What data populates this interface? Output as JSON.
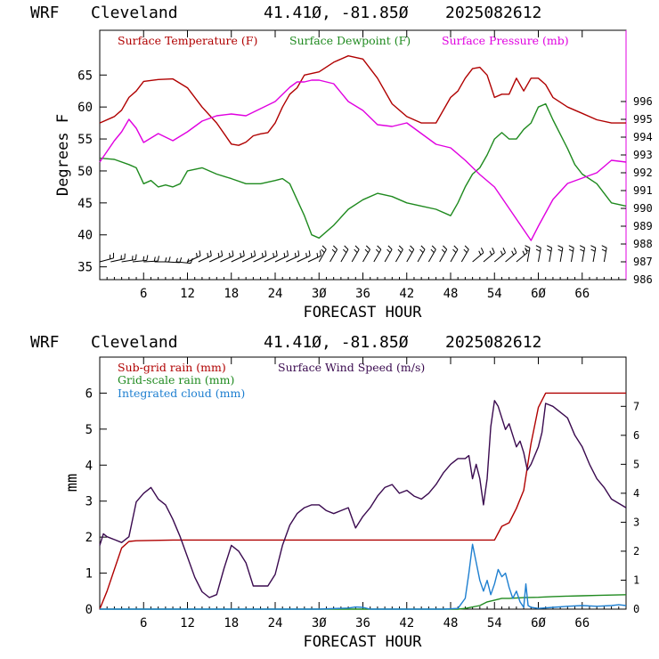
{
  "header": {
    "model": "WRF",
    "location": "Cleveland",
    "coords": "41.41Ø, -81.85Ø",
    "run": "2025082612"
  },
  "chart_data": [
    {
      "type": "line",
      "xlabel": "FORECAST HOUR",
      "ylabel": "Degrees F",
      "xlim": [
        0,
        72
      ],
      "ylim": [
        33,
        72
      ],
      "y2lim": [
        986,
        1000
      ],
      "x_ticks": [
        6,
        12,
        18,
        24,
        30,
        36,
        42,
        48,
        54,
        60,
        66
      ],
      "x_tick_labels": [
        "6",
        "12",
        "18",
        "24",
        "3Ø",
        "36",
        "42",
        "48",
        "54",
        "6Ø",
        "66"
      ],
      "y_ticks": [
        35,
        40,
        45,
        50,
        55,
        60,
        65
      ],
      "y2_ticks": [
        986,
        987,
        988,
        989,
        990,
        991,
        992,
        993,
        994,
        995,
        996
      ],
      "colors": {
        "temperature": "#b00000",
        "dewpoint": "#1f8a1f",
        "pressure": "#e000e0"
      },
      "series": [
        {
          "name": "Surface Temperature (F)",
          "axis": "left",
          "x": [
            0,
            2,
            3,
            4,
            5,
            6,
            8,
            10,
            12,
            14,
            16,
            18,
            19,
            20,
            21,
            22,
            23,
            24,
            25,
            26,
            27,
            28,
            30,
            32,
            34,
            36,
            38,
            40,
            42,
            44,
            46,
            48,
            49,
            50,
            51,
            52,
            53,
            54,
            55,
            56,
            57,
            58,
            59,
            60,
            61,
            62,
            64,
            66,
            68,
            70,
            72
          ],
          "y": [
            57.5,
            58.5,
            59.5,
            61.5,
            62.5,
            64,
            64.3,
            64.4,
            63,
            60,
            57.5,
            54.2,
            54,
            54.5,
            55.5,
            55.8,
            56,
            57.5,
            60,
            62,
            63,
            65,
            65.5,
            67,
            68,
            67.5,
            64.5,
            60.5,
            58.5,
            57.5,
            57.5,
            61.5,
            62.5,
            64.5,
            66,
            66.2,
            65,
            61.5,
            62,
            62,
            64.5,
            62.5,
            64.5,
            64.5,
            63.5,
            61.5,
            60,
            59,
            58,
            57.5,
            57.5
          ]
        },
        {
          "name": "Surface Dewpoint (F)",
          "axis": "left",
          "x": [
            0,
            2,
            4,
            5,
            6,
            7,
            8,
            9,
            10,
            11,
            12,
            14,
            16,
            18,
            20,
            22,
            24,
            25,
            26,
            27,
            28,
            29,
            30,
            32,
            34,
            36,
            38,
            40,
            42,
            44,
            46,
            48,
            49,
            50,
            51,
            52,
            53,
            54,
            55,
            56,
            57,
            58,
            59,
            60,
            61,
            62,
            64,
            65,
            66,
            68,
            70,
            72
          ],
          "y": [
            52,
            51.8,
            51,
            50.5,
            48,
            48.5,
            47.5,
            47.8,
            47.5,
            48,
            50,
            50.5,
            49.5,
            48.8,
            48,
            48,
            48.5,
            48.8,
            48,
            45.5,
            43,
            40,
            39.5,
            41.5,
            44,
            45.5,
            46.5,
            46,
            45,
            44.5,
            44,
            43,
            45,
            47.5,
            49.5,
            50.5,
            52.5,
            55,
            56,
            55,
            55,
            56.5,
            57.5,
            60,
            60.5,
            58,
            53.5,
            51,
            49.5,
            48,
            45,
            44.5
          ]
        },
        {
          "name": "Surface Pressure (mb)",
          "axis": "right",
          "x": [
            0,
            1,
            2,
            3,
            4,
            5,
            6,
            8,
            10,
            12,
            14,
            16,
            18,
            20,
            22,
            24,
            25,
            26,
            27,
            28,
            29,
            30,
            32,
            34,
            36,
            38,
            40,
            42,
            44,
            46,
            48,
            50,
            52,
            54,
            56,
            58,
            59,
            60,
            62,
            64,
            66,
            68,
            70,
            72
          ],
          "y": [
            992.6,
            993.2,
            993.8,
            994.3,
            995.0,
            994.5,
            993.7,
            994.2,
            993.8,
            994.3,
            994.9,
            995.2,
            995.3,
            995.2,
            995.6,
            996.0,
            996.4,
            996.8,
            997.1,
            997.1,
            997.2,
            997.2,
            997.0,
            996.0,
            995.5,
            994.7,
            994.6,
            994.8,
            994.2,
            993.6,
            993.4,
            992.7,
            991.9,
            991.2,
            990.0,
            988.8,
            988.2,
            989.0,
            990.5,
            991.4,
            991.7,
            992.0,
            992.7,
            992.6
          ]
        }
      ],
      "wind_barbs": "row of wind barbs along bottom of upper panel"
    },
    {
      "type": "line",
      "xlabel": "FORECAST HOUR",
      "ylabel": "mm",
      "xlim": [
        0,
        72
      ],
      "ylim": [
        0,
        7
      ],
      "y2lim": [
        0,
        8.7
      ],
      "x_ticks": [
        6,
        12,
        18,
        24,
        30,
        36,
        42,
        48,
        54,
        60,
        66
      ],
      "x_tick_labels": [
        "6",
        "12",
        "18",
        "24",
        "3Ø",
        "36",
        "42",
        "48",
        "54",
        "6Ø",
        "66"
      ],
      "y_ticks": [
        0,
        1,
        2,
        3,
        4,
        5,
        6
      ],
      "y2_ticks": [
        0,
        1,
        2,
        3,
        4,
        5,
        6,
        7
      ],
      "colors": {
        "subgrid": "#b00000",
        "wind": "#3a0a4f",
        "gridscale": "#1f8a1f",
        "cloud": "#1e7fd0"
      },
      "series": [
        {
          "name": "Sub-grid rain (mm)",
          "axis": "left",
          "x": [
            0,
            1,
            2,
            3,
            4,
            5,
            10,
            20,
            30,
            40,
            50,
            53,
            54,
            55,
            56,
            57,
            58,
            59,
            60,
            61,
            62,
            72
          ],
          "y": [
            0,
            0.5,
            1.1,
            1.7,
            1.88,
            1.9,
            1.92,
            1.92,
            1.92,
            1.92,
            1.92,
            1.92,
            1.92,
            2.3,
            2.4,
            2.8,
            3.3,
            4.6,
            5.6,
            6.0,
            6.0,
            6.0
          ]
        },
        {
          "name": "Surface Wind Speed (m/s)",
          "axis": "right",
          "x": [
            0,
            0.5,
            1,
            2,
            3,
            4,
            5,
            6,
            7,
            8,
            9,
            10,
            11,
            12,
            13,
            14,
            15,
            16,
            17,
            18,
            19,
            20,
            21,
            22,
            23,
            24,
            25,
            26,
            27,
            28,
            29,
            30,
            31,
            32,
            33,
            34,
            35,
            36,
            37,
            38,
            39,
            40,
            41,
            42,
            43,
            44,
            45,
            46,
            47,
            48,
            49,
            50,
            50.5,
            51,
            51.5,
            52,
            52.5,
            53,
            53.5,
            54,
            54.5,
            55,
            55.5,
            56,
            56.5,
            57,
            57.5,
            58,
            58.5,
            59,
            60,
            60.5,
            61,
            62,
            63,
            64,
            65,
            66,
            67,
            68,
            69,
            70,
            72
          ],
          "y": [
            2.2,
            2.6,
            2.5,
            2.4,
            2.3,
            2.5,
            3.7,
            4.0,
            4.2,
            3.8,
            3.6,
            3.1,
            2.5,
            1.8,
            1.1,
            0.6,
            0.4,
            0.5,
            1.4,
            2.2,
            2.0,
            1.6,
            0.8,
            0.8,
            0.8,
            1.2,
            2.2,
            2.9,
            3.3,
            3.5,
            3.6,
            3.6,
            3.4,
            3.3,
            3.4,
            3.5,
            2.8,
            3.2,
            3.5,
            3.9,
            4.2,
            4.3,
            4.0,
            4.1,
            3.9,
            3.8,
            4.0,
            4.3,
            4.7,
            5.0,
            5.2,
            5.2,
            5.3,
            4.5,
            5.0,
            4.5,
            3.6,
            4.5,
            6.3,
            7.2,
            7.0,
            6.6,
            6.2,
            6.4,
            6.0,
            5.6,
            5.8,
            5.4,
            4.8,
            5.0,
            5.6,
            6.1,
            7.1,
            7.0,
            6.8,
            6.6,
            6.0,
            5.6,
            5.0,
            4.5,
            4.2,
            3.8,
            3.5
          ]
        },
        {
          "name": "Grid-scale rain (mm)",
          "axis": "left",
          "x": [
            0,
            49,
            50,
            52,
            53,
            54,
            55,
            56,
            58,
            60,
            62,
            64,
            66,
            68,
            70,
            72
          ],
          "y": [
            0,
            0,
            0.02,
            0.1,
            0.2,
            0.25,
            0.3,
            0.3,
            0.32,
            0.33,
            0.35,
            0.36,
            0.37,
            0.38,
            0.39,
            0.4
          ]
        },
        {
          "name": "Integrated cloud (mm)",
          "axis": "left",
          "x": [
            0,
            30,
            34,
            35,
            36,
            37,
            40,
            47,
            49,
            50,
            50.5,
            51,
            51.5,
            52,
            52.5,
            53,
            53.5,
            54,
            54.5,
            55,
            55.5,
            56,
            56.5,
            57,
            57.5,
            58,
            58.3,
            58.6,
            59,
            60,
            62,
            64,
            66,
            68,
            70,
            71,
            72
          ],
          "y": [
            0,
            0,
            0.03,
            0.06,
            0.05,
            0,
            0,
            0,
            0.02,
            0.3,
            1.0,
            1.8,
            1.3,
            0.8,
            0.5,
            0.8,
            0.4,
            0.7,
            1.1,
            0.9,
            1.0,
            0.6,
            0.3,
            0.5,
            0.2,
            0.05,
            0.7,
            0.1,
            0.05,
            0.02,
            0.05,
            0.08,
            0.1,
            0.08,
            0.1,
            0.12,
            0.1
          ]
        }
      ]
    }
  ]
}
